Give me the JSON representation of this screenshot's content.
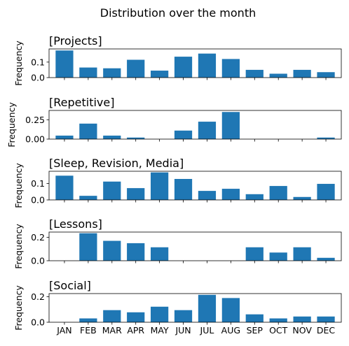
{
  "figure": {
    "title": "Distribution over the month",
    "bar_color": "#1f77b4"
  },
  "chart_data": [
    {
      "type": "bar",
      "title": "[Projects]",
      "ylabel": "Frequency",
      "categories": [
        "JAN",
        "FEB",
        "MAR",
        "APR",
        "MAY",
        "JUN",
        "JUL",
        "AUG",
        "SEP",
        "OCT",
        "NOV",
        "DEC"
      ],
      "values": [
        0.175,
        0.065,
        0.06,
        0.115,
        0.045,
        0.135,
        0.155,
        0.12,
        0.05,
        0.025,
        0.05,
        0.035
      ],
      "ylim": [
        0,
        0.185
      ],
      "yticks": [
        0.0,
        0.1
      ],
      "ytick_labels": [
        "0.0",
        "0.1"
      ],
      "show_xticklabels": false
    },
    {
      "type": "bar",
      "title": "[Repetitive]",
      "ylabel": "Frequency",
      "categories": [
        "JAN",
        "FEB",
        "MAR",
        "APR",
        "MAY",
        "JUN",
        "JUL",
        "AUG",
        "SEP",
        "OCT",
        "NOV",
        "DEC"
      ],
      "values": [
        0.045,
        0.2,
        0.045,
        0.02,
        0.0,
        0.11,
        0.225,
        0.35,
        0.0,
        0.0,
        0.0,
        0.02
      ],
      "ylim": [
        0,
        0.37
      ],
      "yticks": [
        0.0,
        0.25
      ],
      "ytick_labels": [
        "0.00",
        "0.25"
      ],
      "show_xticklabels": false
    },
    {
      "type": "bar",
      "title": "[Sleep, Revision, Media]",
      "ylabel": "Frequency",
      "categories": [
        "JAN",
        "FEB",
        "MAR",
        "APR",
        "MAY",
        "JUN",
        "JUL",
        "AUG",
        "SEP",
        "OCT",
        "NOV",
        "DEC"
      ],
      "values": [
        0.148,
        0.025,
        0.112,
        0.072,
        0.168,
        0.128,
        0.055,
        0.068,
        0.035,
        0.085,
        0.018,
        0.098
      ],
      "ylim": [
        0,
        0.175
      ],
      "yticks": [
        0.0,
        0.1
      ],
      "ytick_labels": [
        "0.0",
        "0.1"
      ],
      "show_xticklabels": false
    },
    {
      "type": "bar",
      "title": "[Lessons]",
      "ylabel": "Frequency",
      "categories": [
        "JAN",
        "FEB",
        "MAR",
        "APR",
        "MAY",
        "JUN",
        "JUL",
        "AUG",
        "SEP",
        "OCT",
        "NOV",
        "DEC"
      ],
      "values": [
        0.0,
        0.235,
        0.17,
        0.15,
        0.115,
        0.0,
        0.0,
        0.0,
        0.115,
        0.07,
        0.115,
        0.025
      ],
      "ylim": [
        0,
        0.245
      ],
      "yticks": [
        0.0,
        0.2
      ],
      "ytick_labels": [
        "0.0",
        "0.2"
      ],
      "show_xticklabels": false
    },
    {
      "type": "bar",
      "title": "[Social]",
      "ylabel": "Frequency",
      "categories": [
        "JAN",
        "FEB",
        "MAR",
        "APR",
        "MAY",
        "JUN",
        "JUL",
        "AUG",
        "SEP",
        "OCT",
        "NOV",
        "DEC"
      ],
      "values": [
        0.0,
        0.03,
        0.095,
        0.078,
        0.122,
        0.095,
        0.215,
        0.19,
        0.062,
        0.03,
        0.045,
        0.045
      ],
      "ylim": [
        0,
        0.225
      ],
      "yticks": [
        0.0,
        0.2
      ],
      "ytick_labels": [
        "0.0",
        "0.2"
      ],
      "show_xticklabels": true
    }
  ]
}
